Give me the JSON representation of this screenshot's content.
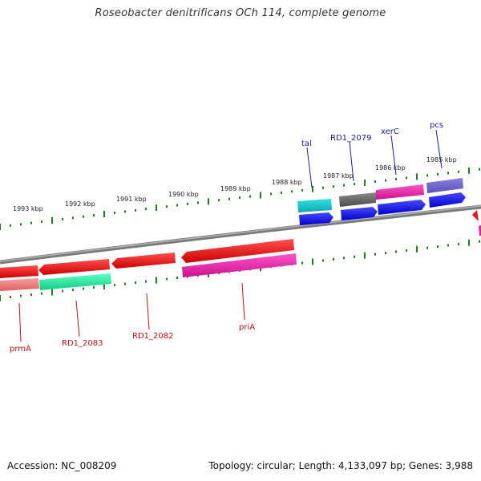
{
  "title": "Roseobacter denitrificans OCh 114, complete genome",
  "footer": {
    "accession": "Accession: NC_008209",
    "summary": "Topology: circular; Length: 4,133,097 bp; Genes: 3,988"
  },
  "colors": {
    "backbone": "#808080",
    "tick": "#1f7f1f",
    "label_top": "#1a1aa0",
    "label_bottom": "#cc1111"
  },
  "kbp_labels": [
    {
      "text": "1993 kbp"
    },
    {
      "text": "1992 kbp"
    },
    {
      "text": "1991 kbp"
    },
    {
      "text": "1990 kbp"
    },
    {
      "text": "1989 kbp"
    },
    {
      "text": "1988 kbp"
    },
    {
      "text": "1987 kbp"
    },
    {
      "text": "1986 kbp"
    },
    {
      "text": "1985 kbp"
    }
  ],
  "gene_labels_top": [
    {
      "text": "tal"
    },
    {
      "text": "RD1_2079"
    },
    {
      "text": "xerC"
    },
    {
      "text": "pcs"
    }
  ],
  "gene_labels_bottom": [
    {
      "text": "prmA"
    },
    {
      "text": "RD1_2083"
    },
    {
      "text": "RD1_2082"
    },
    {
      "text": "priA"
    }
  ]
}
